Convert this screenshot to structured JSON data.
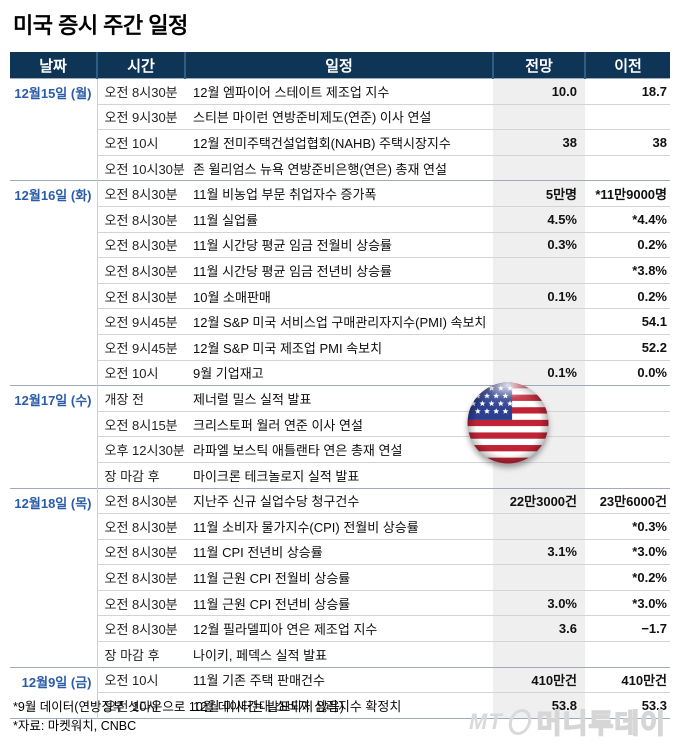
{
  "title": "미국 증시 주간 일정",
  "chart_data": {
    "type": "table",
    "title": "미국 증시 주간 일정",
    "columns": [
      "날짜",
      "시간",
      "일정",
      "전망",
      "이전"
    ],
    "groups": [
      {
        "date": "12월15일 (월)",
        "rows": [
          {
            "time": "오전 8시30분",
            "event": "12월 엠파이어 스테이트 제조업 지수",
            "forecast": "10.0",
            "previous": "18.7"
          },
          {
            "time": "오전 9시30분",
            "event": "스티븐 마이런 연방준비제도(연준) 이사 연설",
            "forecast": "",
            "previous": ""
          },
          {
            "time": "오전 10시",
            "event": "12월 전미주택건설업협회(NAHB) 주택시장지수",
            "forecast": "38",
            "previous": "38"
          },
          {
            "time": "오전 10시30분",
            "event": "존 윌리엄스 뉴욕 연방준비은행(연은) 총재 연설",
            "forecast": "",
            "previous": ""
          }
        ]
      },
      {
        "date": "12월16일 (화)",
        "rows": [
          {
            "time": "오전 8시30분",
            "event": "11월 비농업 부문 취업자수 증가폭",
            "forecast": "5만명",
            "previous": "*11만9000명"
          },
          {
            "time": "오전 8시30분",
            "event": "11월 실업률",
            "forecast": "4.5%",
            "previous": "*4.4%"
          },
          {
            "time": "오전 8시30분",
            "event": "11월 시간당 평균 임금 전월비 상승률",
            "forecast": "0.3%",
            "previous": "0.2%"
          },
          {
            "time": "오전 8시30분",
            "event": "11월 시간당 평균 임금 전년비 상승률",
            "forecast": "",
            "previous": "*3.8%"
          },
          {
            "time": "오전 8시30분",
            "event": "10월 소매판매",
            "forecast": "0.1%",
            "previous": "0.2%"
          },
          {
            "time": "오전 9시45분",
            "event": "12월 S&P 미국 서비스업 구매관리자지수(PMI) 속보치",
            "forecast": "",
            "previous": "54.1"
          },
          {
            "time": "오전 9시45분",
            "event": "12월 S&P 미국 제조업 PMI 속보치",
            "forecast": "",
            "previous": "52.2"
          },
          {
            "time": "오전 10시",
            "event": "9월 기업재고",
            "forecast": "0.1%",
            "previous": "0.0%"
          }
        ]
      },
      {
        "date": "12월17일 (수)",
        "rows": [
          {
            "time": "개장 전",
            "event": "제너럴 밀스 실적 발표",
            "forecast": "",
            "previous": ""
          },
          {
            "time": "오전 8시15분",
            "event": "크리스토퍼 월러 연준 이사 연설",
            "forecast": "",
            "previous": ""
          },
          {
            "time": "오후 12시30분",
            "event": "라파엘 보스틱 애틀랜타 연은 총재 연설",
            "forecast": "",
            "previous": ""
          },
          {
            "time": "장 마감 후",
            "event": "마이크론 테크놀로지 실적 발표",
            "forecast": "",
            "previous": ""
          }
        ]
      },
      {
        "date": "12월18일 (목)",
        "rows": [
          {
            "time": "오전 8시30분",
            "event": "지난주 신규 실업수당 청구건수",
            "forecast": "22만3000건",
            "previous": "23만6000건"
          },
          {
            "time": "오전 8시30분",
            "event": "11월 소비자 물가지수(CPI) 전월비 상승률",
            "forecast": "",
            "previous": "*0.3%"
          },
          {
            "time": "오전 8시30분",
            "event": "11월 CPI 전년비 상승률",
            "forecast": "3.1%",
            "previous": "*3.0%"
          },
          {
            "time": "오전 8시30분",
            "event": "11월 근원 CPI 전월비 상승률",
            "forecast": "",
            "previous": "*0.2%"
          },
          {
            "time": "오전 8시30분",
            "event": "11월 근원 CPI 전년비 상승률",
            "forecast": "3.0%",
            "previous": "*3.0%"
          },
          {
            "time": "오전 8시30분",
            "event": "12월 필라델피아 연은 제조업 지수",
            "forecast": "3.6",
            "previous": "−1.7"
          },
          {
            "time": "장 마감 후",
            "event": "나이키, 페덱스 실적 발표",
            "forecast": "",
            "previous": ""
          }
        ]
      },
      {
        "date": "12월9일 (금)",
        "rows": [
          {
            "time": "오전 10시",
            "event": "11월 기존 주택 판매건수",
            "forecast": "410만건",
            "previous": "410만건"
          },
          {
            "time": "오전 10시",
            "event": "12월 미시간대 소비자 심리지수 확정치",
            "forecast": "53.8",
            "previous": "53.3"
          }
        ]
      }
    ],
    "legend_position": "none",
    "grid": "horizontal-row-separators"
  },
  "footnotes": [
    "*9월 데이터(연방정부 셧다운으로 10월 데이터는 발표되지 않음)",
    "*자료: 마켓워치, CNBC"
  ],
  "logo": {
    "mt": "MT",
    "name": "머니투데이"
  },
  "colors": {
    "header_bg": "#0e3456",
    "header_divider": "#2e5d8a",
    "date_text": "#2a5ca8",
    "forecast_col_bg": "#efefef",
    "group_separator": "#9fabba",
    "row_separator": "#d4d4d4",
    "flag_red": "#bf2335",
    "flag_blue": "#2d3f8f",
    "logo_gray": "#d9d9d9"
  }
}
